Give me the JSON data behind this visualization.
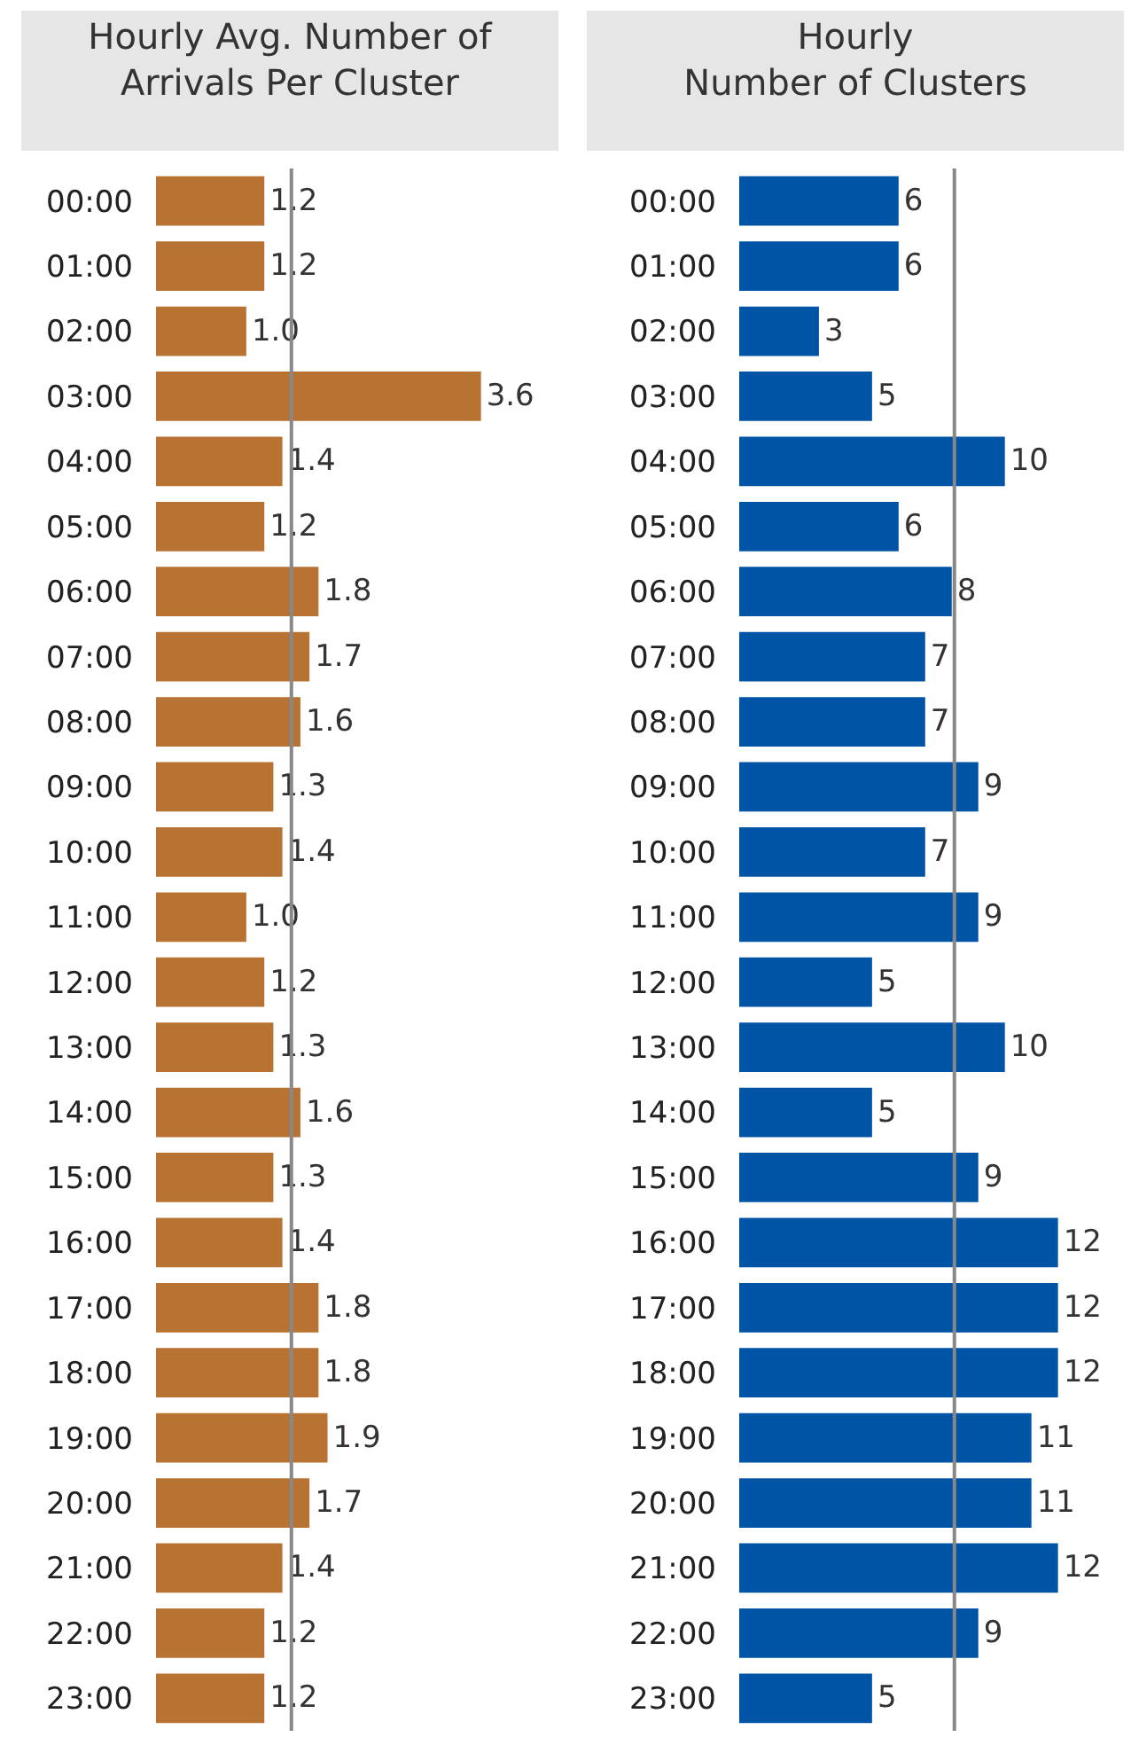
{
  "chart_data": [
    {
      "type": "bar",
      "orientation": "horizontal",
      "title": "Hourly Avg. Number of\nArrivals Per Cluster",
      "categories": [
        "00:00",
        "01:00",
        "02:00",
        "03:00",
        "04:00",
        "05:00",
        "06:00",
        "07:00",
        "08:00",
        "09:00",
        "10:00",
        "11:00",
        "12:00",
        "13:00",
        "14:00",
        "15:00",
        "16:00",
        "17:00",
        "18:00",
        "19:00",
        "20:00",
        "21:00",
        "22:00",
        "23:00"
      ],
      "values": [
        1.2,
        1.2,
        1.0,
        3.6,
        1.4,
        1.2,
        1.8,
        1.7,
        1.6,
        1.3,
        1.4,
        1.0,
        1.2,
        1.3,
        1.6,
        1.3,
        1.4,
        1.8,
        1.8,
        1.9,
        1.7,
        1.4,
        1.2,
        1.2
      ],
      "value_labels": [
        "1.2",
        "1.2",
        "1.0",
        "3.6",
        "1.4",
        "1.2",
        "1.8",
        "1.7",
        "1.6",
        "1.3",
        "1.4",
        "1.0",
        "1.2",
        "1.3",
        "1.6",
        "1.3",
        "1.4",
        "1.8",
        "1.8",
        "1.9",
        "1.7",
        "1.4",
        "1.2",
        "1.2"
      ],
      "color": "#b87333",
      "tick_labels": "y",
      "ref_lines": [
        {
          "axis": "x",
          "value": 1.5,
          "color": "#888888"
        }
      ]
    },
    {
      "type": "bar",
      "orientation": "horizontal",
      "title": "Hourly\nNumber of Clusters",
      "categories": [
        "00:00",
        "01:00",
        "02:00",
        "03:00",
        "04:00",
        "05:00",
        "06:00",
        "07:00",
        "08:00",
        "09:00",
        "10:00",
        "11:00",
        "12:00",
        "13:00",
        "14:00",
        "15:00",
        "16:00",
        "17:00",
        "18:00",
        "19:00",
        "20:00",
        "21:00",
        "22:00",
        "23:00"
      ],
      "values": [
        6,
        6,
        3,
        5,
        10,
        6,
        8,
        7,
        7,
        9,
        7,
        9,
        5,
        10,
        5,
        9,
        12,
        12,
        12,
        11,
        11,
        12,
        9,
        5
      ],
      "color": "#0054a6",
      "data_labels": true,
      "tick_labels": "y",
      "ref_lines": [
        {
          "axis": "x",
          "value": 8.1,
          "color": "#888888"
        }
      ]
    }
  ]
}
